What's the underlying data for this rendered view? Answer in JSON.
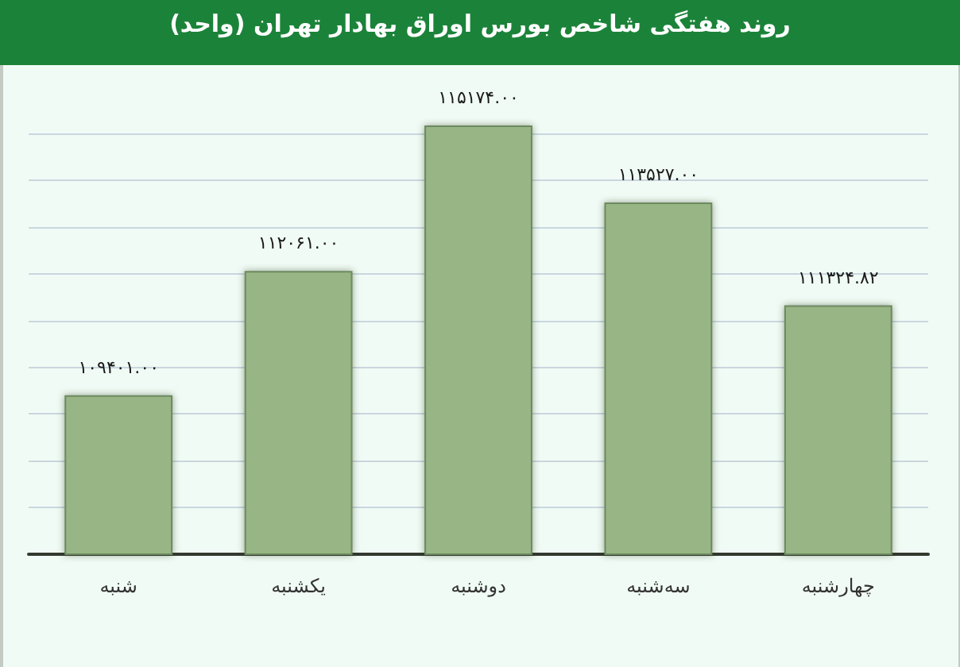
{
  "chart_data": {
    "type": "bar",
    "title": "روند هفتگی شاخص بورس اوراق بهادار تهران (واحد)",
    "categories": [
      "شنبه",
      "یکشنبه",
      "دوشنبه",
      "سه‌شنبه",
      "چهارشنبه"
    ],
    "values": [
      109401,
      112061,
      115174,
      113527,
      111324.82
    ],
    "value_labels": [
      "۱۰۹۴۰۱.۰۰",
      "۱۱۲۰۶۱.۰۰",
      "۱۱۵۱۷۴.۰۰",
      "۱۱۳۵۲۷.۰۰",
      "۱۱۱۳۲۴.۸۲"
    ],
    "color": "#97b585",
    "ylim": [
      106000,
      115174
    ],
    "yticks": [
      {
        "value": 106000,
        "label": null
      },
      {
        "value": 107000,
        "label": null
      },
      {
        "value": 108000,
        "label": null
      },
      {
        "value": 109000,
        "label": null
      },
      {
        "value": 110000,
        "label": null
      },
      {
        "value": 111000,
        "label": null
      },
      {
        "value": 112000,
        "label": null
      },
      {
        "value": 113000,
        "label": null
      },
      {
        "value": 114000,
        "label": null
      },
      {
        "value": 115000,
        "label": null
      }
    ],
    "grid": "y",
    "tick_labels": "x"
  }
}
